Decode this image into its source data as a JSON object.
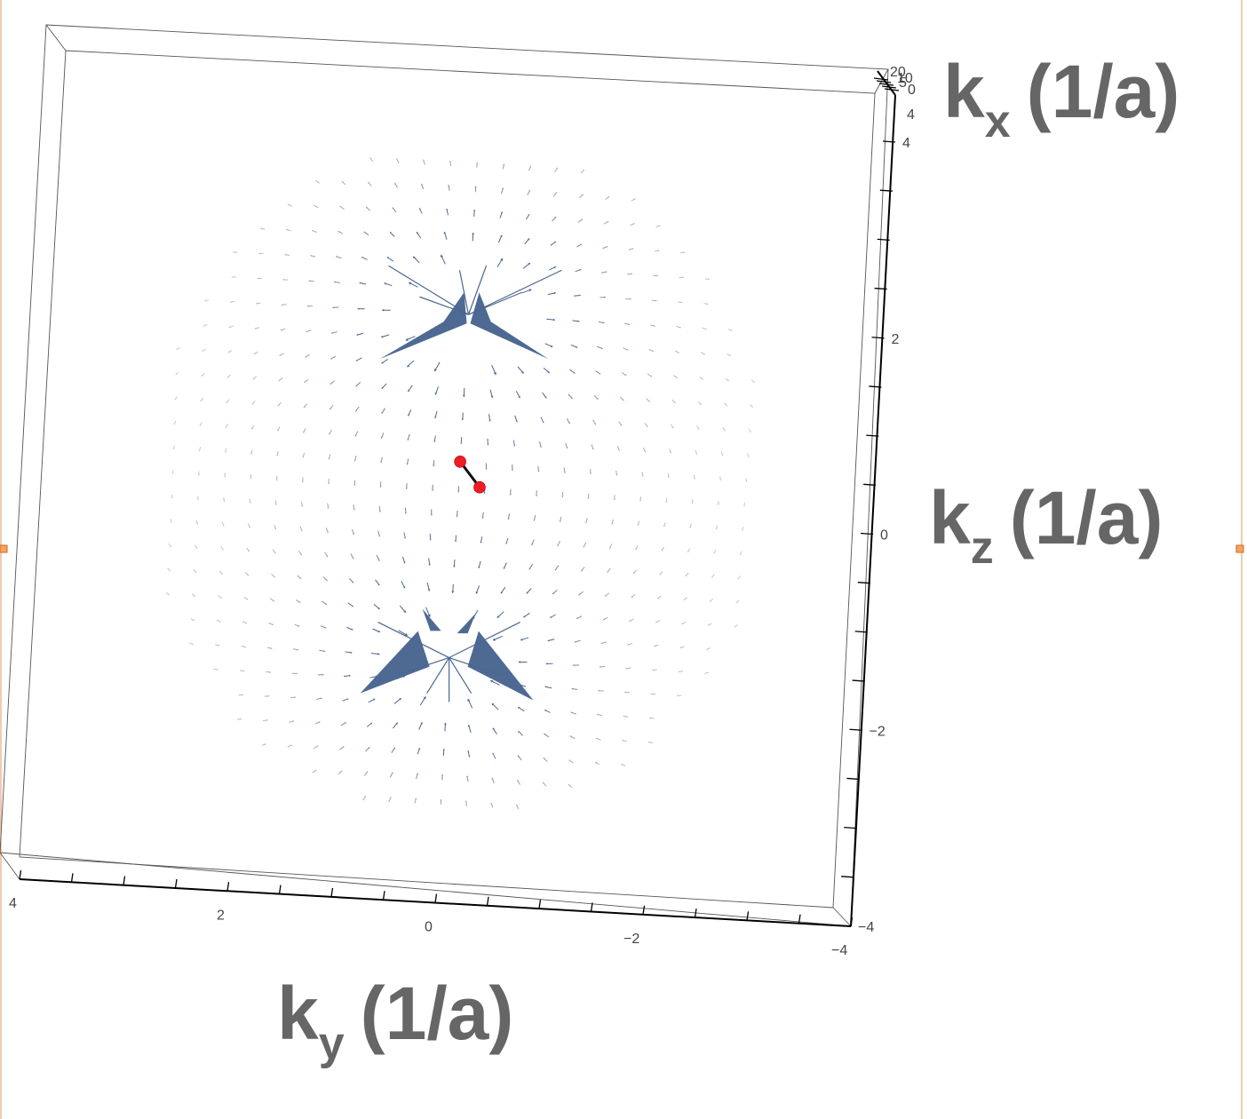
{
  "chart_data": {
    "type": "vector-field-3d",
    "title": "",
    "axes": {
      "x": {
        "label": "k",
        "subscript": "x",
        "unit": "(1/a)",
        "visible_ticks": [
          20,
          10,
          5,
          0,
          4
        ]
      },
      "y": {
        "label": "k",
        "subscript": "y",
        "unit": "(1/a)",
        "range": [
          4,
          -4
        ],
        "ticks": [
          4,
          2,
          0,
          -2,
          -4
        ]
      },
      "z": {
        "label": "k",
        "subscript": "z",
        "unit": "(1/a)",
        "range": [
          -4,
          4
        ],
        "ticks": [
          4,
          2,
          0,
          -2,
          -4
        ]
      }
    },
    "field_centers": [
      {
        "ky": 0.0,
        "kz": 2.0
      },
      {
        "ky": 0.0,
        "kz": -1.5
      }
    ],
    "weyl_points": [
      {
        "ky": 0.0,
        "kz": 0.5
      },
      {
        "ky": -0.2,
        "kz": 0.25
      }
    ],
    "colors": {
      "vectors": "#4a6690",
      "weyl_points": "#ee1c24",
      "link": "#111111",
      "axis_title": "#666666"
    }
  }
}
